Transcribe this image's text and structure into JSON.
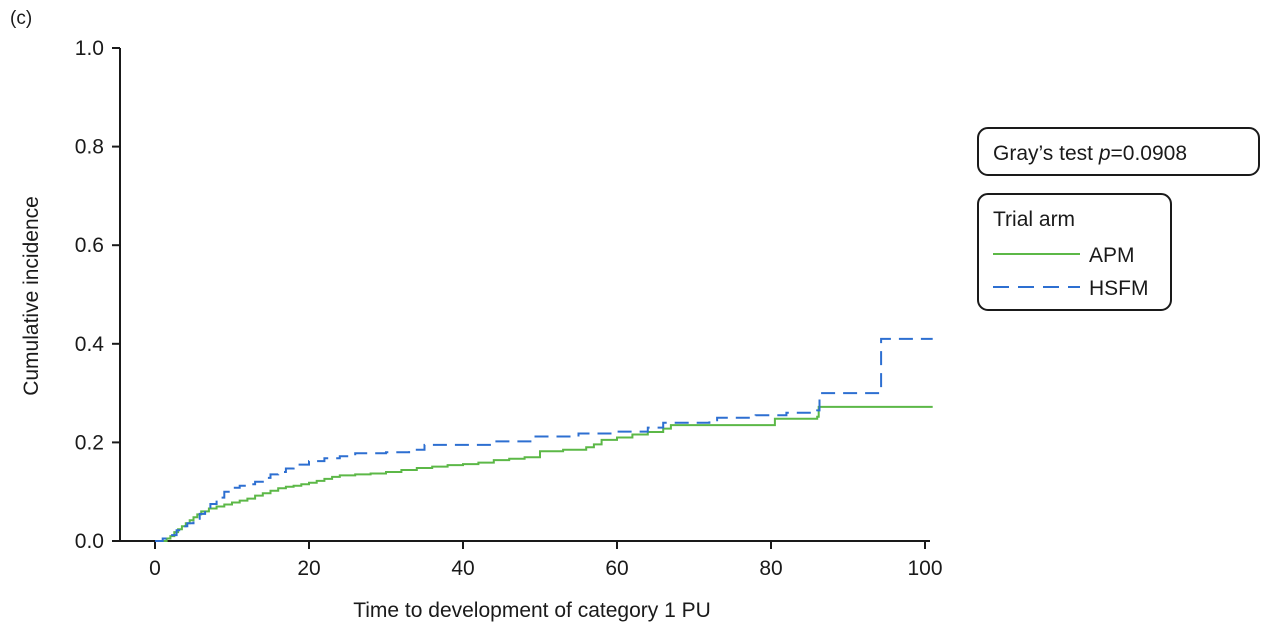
{
  "panel_label": "(c)",
  "chart_data": {
    "type": "line",
    "title": "",
    "xlabel": "Time to development of category 1 PU",
    "ylabel": "Cumulative incidence",
    "xlim": [
      0,
      100
    ],
    "ylim": [
      0,
      1
    ],
    "xticks": [
      "0",
      "20",
      "40",
      "60",
      "80",
      "100"
    ],
    "yticks": [
      "0.0",
      "0.2",
      "0.4",
      "0.6",
      "0.8",
      "1.0"
    ],
    "grid": false,
    "legend_position": "right",
    "annotation": {
      "prefix": "Gray’s test ",
      "p_symbol": "p",
      "suffix": "=0.0908"
    },
    "legend_title": "Trial arm",
    "series": [
      {
        "name": "APM",
        "color": "#5cb847",
        "dash": "solid",
        "points": [
          [
            0,
            0
          ],
          [
            1.5,
            0.005
          ],
          [
            2,
            0.01
          ],
          [
            2.5,
            0.018
          ],
          [
            3,
            0.024
          ],
          [
            3.5,
            0.03
          ],
          [
            4,
            0.036
          ],
          [
            4.5,
            0.042
          ],
          [
            5,
            0.048
          ],
          [
            5.5,
            0.054
          ],
          [
            6,
            0.06
          ],
          [
            7,
            0.066
          ],
          [
            8,
            0.07
          ],
          [
            9,
            0.074
          ],
          [
            10,
            0.078
          ],
          [
            11,
            0.082
          ],
          [
            12,
            0.086
          ],
          [
            13,
            0.092
          ],
          [
            14,
            0.097
          ],
          [
            15,
            0.102
          ],
          [
            16,
            0.107
          ],
          [
            17,
            0.11
          ],
          [
            18,
            0.112
          ],
          [
            19,
            0.115
          ],
          [
            20,
            0.118
          ],
          [
            21,
            0.122
          ],
          [
            22,
            0.126
          ],
          [
            23,
            0.13
          ],
          [
            24,
            0.133
          ],
          [
            26,
            0.135
          ],
          [
            28,
            0.137
          ],
          [
            30,
            0.14
          ],
          [
            32,
            0.144
          ],
          [
            34,
            0.148
          ],
          [
            36,
            0.151
          ],
          [
            38,
            0.154
          ],
          [
            40,
            0.156
          ],
          [
            42,
            0.159
          ],
          [
            44,
            0.164
          ],
          [
            46,
            0.167
          ],
          [
            48,
            0.17
          ],
          [
            50,
            0.182
          ],
          [
            53,
            0.185
          ],
          [
            56,
            0.19
          ],
          [
            57,
            0.196
          ],
          [
            58,
            0.205
          ],
          [
            60,
            0.21
          ],
          [
            62,
            0.216
          ],
          [
            64,
            0.221
          ],
          [
            66,
            0.228
          ],
          [
            67,
            0.235
          ],
          [
            72,
            0.235
          ],
          [
            80,
            0.235
          ],
          [
            80.5,
            0.248
          ],
          [
            86,
            0.252
          ],
          [
            86.2,
            0.272
          ],
          [
            93,
            0.272
          ],
          [
            101,
            0.272
          ]
        ]
      },
      {
        "name": "HSFM",
        "color": "#2d6fd1",
        "dash": "dashed",
        "points": [
          [
            0,
            0
          ],
          [
            1,
            0.005
          ],
          [
            2,
            0.012
          ],
          [
            2.8,
            0.022
          ],
          [
            3.5,
            0.03
          ],
          [
            4.2,
            0.036
          ],
          [
            5,
            0.045
          ],
          [
            5.8,
            0.055
          ],
          [
            6.5,
            0.066
          ],
          [
            7.2,
            0.075
          ],
          [
            8,
            0.088
          ],
          [
            9,
            0.1
          ],
          [
            10,
            0.108
          ],
          [
            11,
            0.112
          ],
          [
            12,
            0.115
          ],
          [
            13,
            0.12
          ],
          [
            14,
            0.128
          ],
          [
            15,
            0.135
          ],
          [
            16,
            0.14
          ],
          [
            17,
            0.147
          ],
          [
            18,
            0.155
          ],
          [
            20,
            0.162
          ],
          [
            22,
            0.168
          ],
          [
            24,
            0.172
          ],
          [
            26,
            0.178
          ],
          [
            30,
            0.18
          ],
          [
            33,
            0.185
          ],
          [
            35,
            0.195
          ],
          [
            40,
            0.195
          ],
          [
            44,
            0.202
          ],
          [
            49,
            0.212
          ],
          [
            55,
            0.218
          ],
          [
            60,
            0.222
          ],
          [
            64,
            0.23
          ],
          [
            66,
            0.24
          ],
          [
            72,
            0.245
          ],
          [
            73,
            0.25
          ],
          [
            78,
            0.255
          ],
          [
            82,
            0.26
          ],
          [
            86,
            0.265
          ],
          [
            86.3,
            0.3
          ],
          [
            94,
            0.3
          ],
          [
            94.3,
            0.41
          ],
          [
            101,
            0.41
          ]
        ]
      }
    ]
  }
}
